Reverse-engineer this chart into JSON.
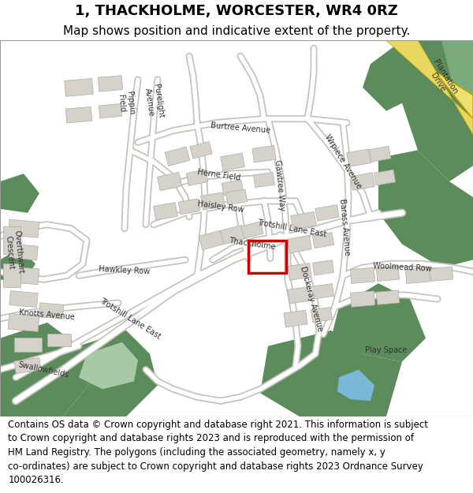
{
  "title": "1, THACKHOLME, WORCESTER, WR4 0RZ",
  "subtitle": "Map shows position and indicative extent of the property.",
  "footer_lines": [
    "Contains OS data © Crown copyright and database right 2021. This information is subject",
    "to Crown copyright and database rights 2023 and is reproduced with the permission of",
    "HM Land Registry. The polygons (including the associated geometry, namely x, y",
    "co-ordinates) are subject to Crown copyright and database rights 2023 Ordnance Survey",
    "100026316."
  ],
  "map_bg": "#e8e6e1",
  "road_color": "#ffffff",
  "road_outline": "#c5c2bc",
  "green_dark": "#5c8c5c",
  "green_mid": "#7aaa7a",
  "green_pale": "#a8c8a8",
  "blue_color": "#7ab8d8",
  "yellow_road": "#f0e070",
  "yellow_outline": "#c8a800",
  "red_box_color": "#cc0000",
  "title_fontsize": 13,
  "subtitle_fontsize": 11,
  "footer_fontsize": 8.5
}
